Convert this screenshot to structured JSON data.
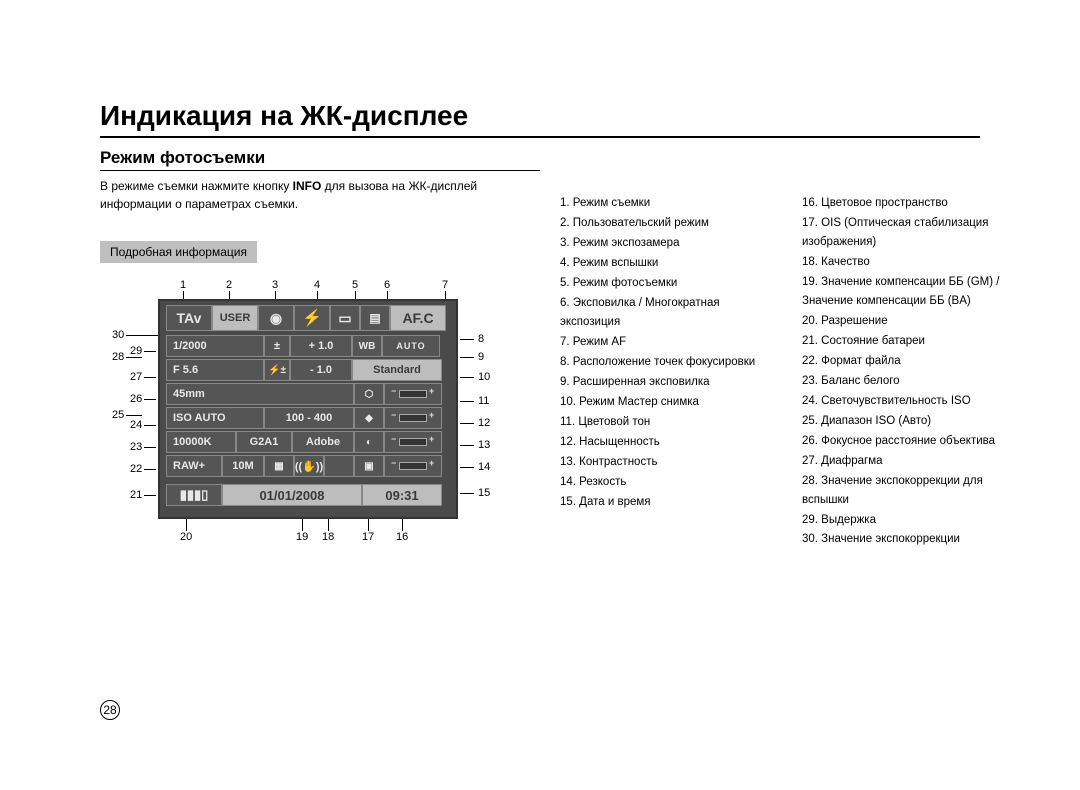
{
  "page_number": "28",
  "title": "Индикация на ЖК-дисплее",
  "subtitle": "Режим фотосъемки",
  "intro_before_bold": "В режиме съемки нажмите кнопку ",
  "intro_bold": "INFO",
  "intro_after_bold": " для вызова на ЖК-дисплей информации о параметрах съемки.",
  "detail_label": "Подробная информация",
  "lcd": {
    "mode": "TAv",
    "user": "USER",
    "afc": "AF.C",
    "auto": "AUTO",
    "shutter": "1/2000",
    "ev_plus": "+ 1.0",
    "aperture": "F 5.6",
    "flash_ev": "- 1.0",
    "standard": "Standard",
    "focal": "45mm",
    "iso_label": "ISO AUTO",
    "iso_range": "100 - 400",
    "kelvin": "10000K",
    "wb_shift": "G2A1",
    "adobe": "Adobe",
    "raw": "RAW+",
    "mp": "10M",
    "date": "01/01/2008",
    "time": "09:31",
    "wb": "WB",
    "ev_icon": "±",
    "flash_icon": "⚡±"
  },
  "callouts_top": [
    "1",
    "2",
    "3",
    "4",
    "5",
    "6",
    "7"
  ],
  "callouts_right": [
    "8",
    "9",
    "10",
    "11",
    "12",
    "13",
    "14",
    "15"
  ],
  "callouts_left": [
    "30",
    "29",
    "28",
    "27",
    "26",
    "25",
    "24",
    "23",
    "22",
    "21",
    "20"
  ],
  "callouts_bottom": [
    "20",
    "19",
    "18",
    "17",
    "16"
  ],
  "legend_col1": [
    "1.  Режим съемки",
    "2.  Пользовательский режим",
    "3.  Режим экспозамера",
    "4.  Режим вспышки",
    "5.  Режим фотосъемки",
    "6.  Эксповилка / Многократная экспозиция",
    "7.  Режим AF",
    "8.  Расположение точек фокусировки",
    "9.  Расширенная эксповилка",
    "10. Режим Мастер снимка",
    "11. Цветовой тон",
    "12. Насыщенность",
    "13. Контрастность",
    "14. Резкость",
    "15. Дата и время"
  ],
  "legend_col2": [
    "16. Цветовое пространство",
    "17. OIS (Оптическая стабилизация изображения)",
    "18. Качество",
    "19. Значение компенсации ББ (GM) / Значение компенсации ББ (BA)",
    "20. Разрешение",
    "21. Состояние батареи",
    "22. Формат файла",
    "23. Баланс белого",
    "24. Светочувствительность ISO",
    "25. Диапазон ISO (Авто)",
    "26. Фокусное расстояние объектива",
    "27. Диафрагма",
    "28. Значение экспокоррекции для вспышки",
    "29. Выдержка",
    "30. Значение экспокоррекции"
  ]
}
